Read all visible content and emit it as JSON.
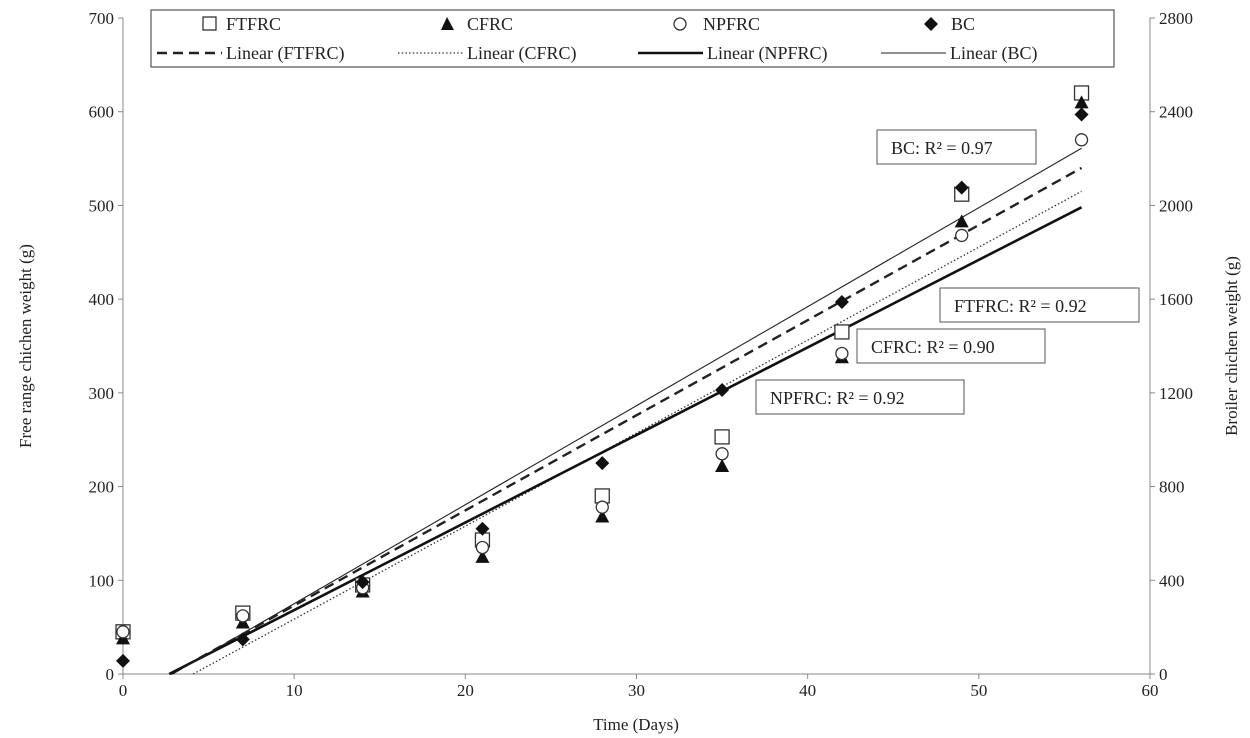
{
  "chart_data": {
    "type": "scatter",
    "title": "",
    "xlabel": "Time (Days)",
    "ylabel_left": "Free range chichen weight (g)",
    "ylabel_right": "Broiler chichen weight (g)",
    "xlim": [
      0,
      60
    ],
    "ylim_left": [
      0,
      700
    ],
    "ylim_right": [
      0,
      2800
    ],
    "x_ticks": [
      "0",
      "10",
      "20",
      "30",
      "40",
      "50",
      "60"
    ],
    "y_left_ticks": [
      "0",
      "100",
      "200",
      "300",
      "400",
      "500",
      "600",
      "700"
    ],
    "y_right_ticks": [
      "0",
      "400",
      "800",
      "1200",
      "1600",
      "2000",
      "2400",
      "2800"
    ],
    "grid": false,
    "legend_position": "top",
    "series": [
      {
        "name": "FTFRC",
        "marker": "square-open",
        "axis": "left",
        "x": [
          0,
          7,
          14,
          21,
          28,
          35,
          42,
          49,
          56
        ],
        "y": [
          45,
          65,
          95,
          143,
          190,
          253,
          365,
          512,
          620
        ]
      },
      {
        "name": "CFRC",
        "marker": "triangle-filled",
        "axis": "left",
        "x": [
          0,
          7,
          14,
          21,
          28,
          35,
          42,
          49,
          56
        ],
        "y": [
          38,
          55,
          88,
          125,
          168,
          222,
          338,
          483,
          610
        ]
      },
      {
        "name": "NPFRC",
        "marker": "circle-open",
        "axis": "left",
        "x": [
          0,
          7,
          14,
          21,
          28,
          35,
          42,
          49,
          56
        ],
        "y": [
          45,
          62,
          92,
          135,
          178,
          235,
          342,
          468,
          570
        ]
      },
      {
        "name": "BC",
        "marker": "diamond-filled",
        "axis": "right",
        "x": [
          0,
          7,
          14,
          21,
          28,
          35,
          42,
          49,
          56
        ],
        "y": [
          56,
          148,
          392,
          620,
          900,
          1212,
          1588,
          2076,
          2388
        ]
      }
    ],
    "trendlines": [
      {
        "name": "Linear (FTFRC)",
        "style": "dashed",
        "axis": "left",
        "x": [
          2.8,
          56
        ],
        "y": [
          0,
          540
        ]
      },
      {
        "name": "Linear (CFRC)",
        "style": "dotted",
        "axis": "left",
        "x": [
          4.1,
          56
        ],
        "y": [
          0,
          515
        ]
      },
      {
        "name": "Linear (NPFRC)",
        "style": "solid-thick",
        "axis": "left",
        "x": [
          2.7,
          56
        ],
        "y": [
          0,
          498
        ]
      },
      {
        "name": "Linear (BC)",
        "style": "solid-thin",
        "axis": "right",
        "x": [
          2.9,
          56
        ],
        "y": [
          0,
          2244
        ]
      }
    ],
    "annotations": [
      {
        "id": "bc",
        "text": "BC: R² = 0.97"
      },
      {
        "id": "ftfrc",
        "text": "FTFRC: R² = 0.92"
      },
      {
        "id": "cfrc",
        "text": "CFRC: R² = 0.90"
      },
      {
        "id": "npfrc",
        "text": "NPFRC: R² = 0.92"
      }
    ]
  }
}
